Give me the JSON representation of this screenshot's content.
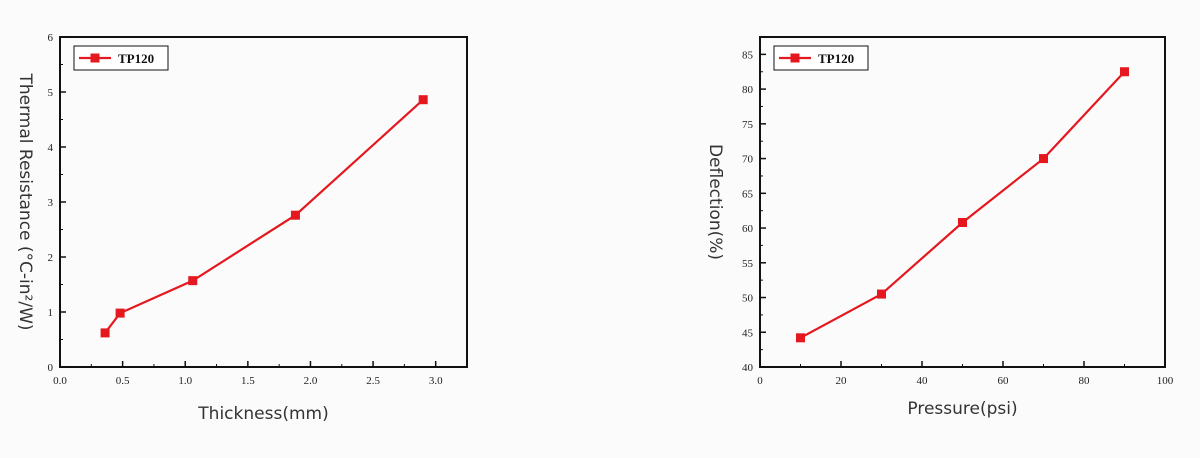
{
  "chart_data": [
    {
      "type": "line",
      "xlabel": "Thickness(mm)",
      "ylabel": "Thermal Resistance (°C-in²/W)",
      "xlim": [
        0.0,
        3.25
      ],
      "ylim": [
        0,
        6
      ],
      "x_ticks": [
        "0.0",
        "0.5",
        "1.0",
        "1.5",
        "2.0",
        "2.5",
        "3.0"
      ],
      "y_ticks": [
        "0",
        "1",
        "2",
        "3",
        "4",
        "5",
        "6"
      ],
      "legend_position": "top-left",
      "grid": false,
      "series": [
        {
          "name": "TP120",
          "color": "#e4181e",
          "marker": "square",
          "x": [
            0.36,
            0.48,
            1.06,
            1.88,
            2.9
          ],
          "y": [
            0.62,
            0.98,
            1.57,
            2.76,
            4.86
          ]
        }
      ]
    },
    {
      "type": "line",
      "xlabel": "Pressure(psi)",
      "ylabel": "Deflection(%)",
      "xlim": [
        0,
        100
      ],
      "ylim": [
        40,
        87.5
      ],
      "x_ticks": [
        "0",
        "20",
        "40",
        "60",
        "80",
        "100"
      ],
      "y_ticks": [
        "40",
        "45",
        "50",
        "55",
        "60",
        "65",
        "70",
        "75",
        "80",
        "85"
      ],
      "legend_position": "top-left",
      "grid": false,
      "series": [
        {
          "name": "TP120",
          "color": "#e4181e",
          "marker": "square",
          "x": [
            10,
            30,
            50,
            70,
            90
          ],
          "y": [
            44.2,
            50.5,
            60.8,
            70.0,
            82.5
          ]
        }
      ]
    }
  ]
}
